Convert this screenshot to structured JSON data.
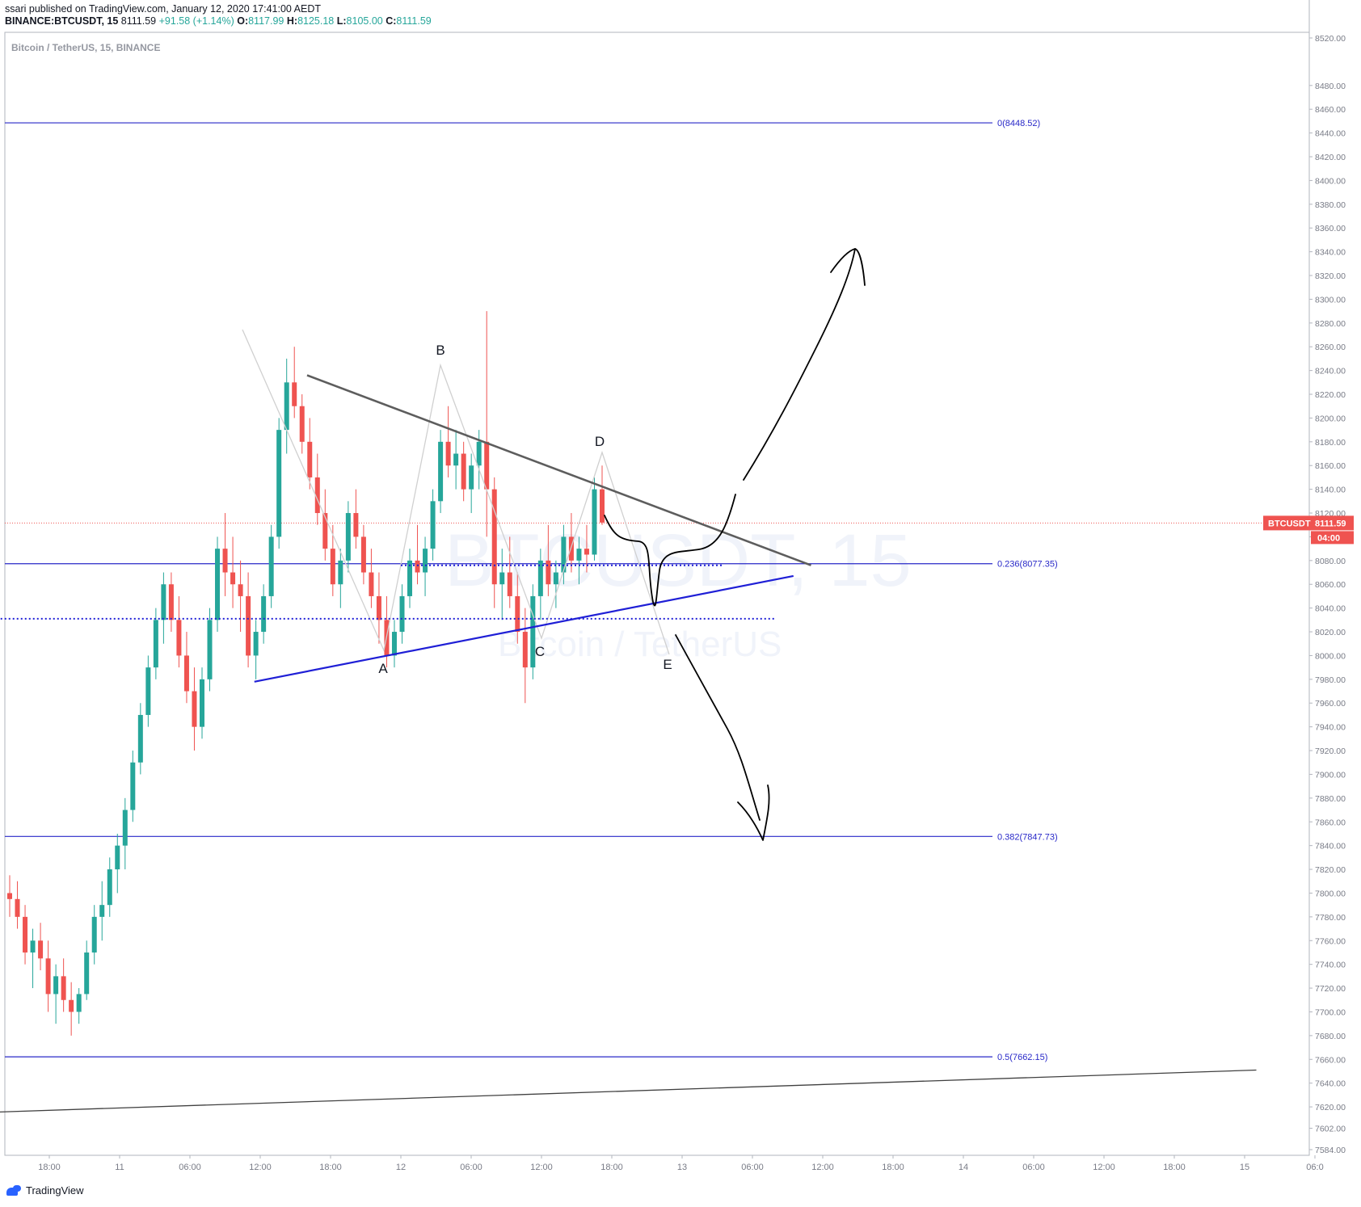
{
  "header": {
    "line1": "ssari published on TradingView.com, January 12, 2020 17:41:00 AEDT",
    "symbol": "BINANCE:BTCUSDT, 15",
    "last": "8111.59",
    "change": "+91.58 (+1.14%)",
    "o_label": "O:",
    "o_value": "8117.99",
    "h_label": "H:",
    "h_value": "8125.18",
    "l_label": "L:",
    "l_value": "8105.00",
    "c_label": "C:",
    "c_value": "8111.59"
  },
  "pane_title": "Bitcoin / TetherUS, 15, BINANCE",
  "watermark": {
    "symbol": "BTCUSDT, 15",
    "name": "Bitcoin / TetherUS"
  },
  "price_tag": {
    "symbol": "BTCUSDT",
    "price": "8111.59",
    "countdown": "04:00",
    "color": "#ef5350"
  },
  "footer": {
    "brand": "TradingView"
  },
  "colors": {
    "up": "#26a69a",
    "down": "#ef5350",
    "fib": "#2828c8",
    "trend_grey": "#5d5d5d",
    "support_blue": "#1f1fd6",
    "drawing": "#000000",
    "wave": "#d0d0d0"
  },
  "chart_data": {
    "type": "candlestick",
    "symbol": "BINANCE:BTCUSDT",
    "interval": "15",
    "y_axis": {
      "min": 7584,
      "max": 8520,
      "ticks": [
        8520,
        8480,
        8460,
        8440,
        8420,
        8400,
        8380,
        8360,
        8340,
        8320,
        8300,
        8280,
        8260,
        8240,
        8220,
        8200,
        8180,
        8160,
        8140,
        8120,
        8100,
        8080,
        8060,
        8040,
        8020,
        8000,
        7980,
        7960,
        7940,
        7920,
        7900,
        7880,
        7860,
        7840,
        7820,
        7800,
        7780,
        7760,
        7740,
        7720,
        7700,
        7680,
        7660,
        7640,
        7620,
        7602,
        7584
      ]
    },
    "x_axis": {
      "ticks": [
        "18:00",
        "11",
        "06:00",
        "12:00",
        "18:00",
        "12",
        "06:00",
        "12:00",
        "18:00",
        "13",
        "06:00",
        "12:00",
        "18:00",
        "14",
        "06:00",
        "12:00",
        "18:00",
        "15",
        "06:0"
      ]
    },
    "fib_levels": [
      {
        "label": "0(8448.52)",
        "value": 8448.52
      },
      {
        "label": "0.236(8077.35)",
        "value": 8077.35
      },
      {
        "label": "0.382(7847.73)",
        "value": 7847.73
      },
      {
        "label": "0.5(7662.15)",
        "value": 7662.15
      }
    ],
    "last_price": 8111.59,
    "wave_labels": [
      "A",
      "B",
      "C",
      "D",
      "E"
    ],
    "trend_lines": [
      {
        "name": "descending resistance",
        "from": {
          "x_hours": 22,
          "price": 8236
        },
        "to": {
          "x_hours": 65,
          "price": 8076
        }
      },
      {
        "name": "ascending support",
        "from": {
          "x_hours": 17.5,
          "price": 7978
        },
        "to": {
          "x_hours": 63.5,
          "price": 8067
        }
      },
      {
        "name": "long-term support",
        "from": {
          "x_hours": -9.5,
          "price": 7614
        },
        "to": {
          "x_hours": 103,
          "price": 7651
        }
      }
    ],
    "dotted_levels": [
      {
        "value": 8031,
        "from_x_hours": -4.5,
        "to_x_hours": 62
      },
      {
        "value": 8076,
        "from_x_hours": 30,
        "to_x_hours": 57.5
      }
    ],
    "candles_ohlc_approx": [
      [
        7800,
        7815,
        7780,
        7795
      ],
      [
        7795,
        7810,
        7770,
        7780
      ],
      [
        7780,
        7790,
        7740,
        7750
      ],
      [
        7750,
        7770,
        7720,
        7760
      ],
      [
        7760,
        7775,
        7735,
        7745
      ],
      [
        7745,
        7760,
        7700,
        7715
      ],
      [
        7715,
        7740,
        7690,
        7730
      ],
      [
        7730,
        7745,
        7700,
        7710
      ],
      [
        7710,
        7725,
        7680,
        7700
      ],
      [
        7700,
        7720,
        7690,
        7715
      ],
      [
        7715,
        7760,
        7710,
        7750
      ],
      [
        7750,
        7790,
        7740,
        7780
      ],
      [
        7780,
        7810,
        7760,
        7790
      ],
      [
        7790,
        7830,
        7780,
        7820
      ],
      [
        7820,
        7850,
        7800,
        7840
      ],
      [
        7840,
        7880,
        7820,
        7870
      ],
      [
        7870,
        7920,
        7860,
        7910
      ],
      [
        7910,
        7960,
        7900,
        7950
      ],
      [
        7950,
        8000,
        7940,
        7990
      ],
      [
        7990,
        8040,
        7980,
        8030
      ],
      [
        8030,
        8070,
        8010,
        8060
      ],
      [
        8060,
        8070,
        8020,
        8030
      ],
      [
        8030,
        8050,
        7990,
        8000
      ],
      [
        8000,
        8020,
        7960,
        7970
      ],
      [
        7970,
        7990,
        7920,
        7940
      ],
      [
        7940,
        7990,
        7930,
        7980
      ],
      [
        7980,
        8040,
        7970,
        8030
      ],
      [
        8030,
        8100,
        8020,
        8090
      ],
      [
        8090,
        8120,
        8050,
        8070
      ],
      [
        8070,
        8100,
        8040,
        8060
      ],
      [
        8060,
        8080,
        8020,
        8050
      ],
      [
        8050,
        8070,
        7990,
        8000
      ],
      [
        8000,
        8030,
        7980,
        8020
      ],
      [
        8020,
        8060,
        8010,
        8050
      ],
      [
        8050,
        8110,
        8040,
        8100
      ],
      [
        8100,
        8200,
        8090,
        8190
      ],
      [
        8190,
        8250,
        8170,
        8230
      ],
      [
        8230,
        8260,
        8200,
        8210
      ],
      [
        8210,
        8220,
        8170,
        8180
      ],
      [
        8180,
        8200,
        8140,
        8150
      ],
      [
        8150,
        8170,
        8110,
        8120
      ],
      [
        8120,
        8140,
        8080,
        8090
      ],
      [
        8090,
        8110,
        8050,
        8060
      ],
      [
        8060,
        8090,
        8040,
        8080
      ],
      [
        8080,
        8130,
        8070,
        8120
      ],
      [
        8120,
        8140,
        8090,
        8100
      ],
      [
        8100,
        8110,
        8060,
        8070
      ],
      [
        8070,
        8090,
        8040,
        8050
      ],
      [
        8050,
        8070,
        8010,
        8030
      ],
      [
        8030,
        8050,
        7990,
        8000
      ],
      [
        8000,
        8030,
        7990,
        8020
      ],
      [
        8020,
        8060,
        8010,
        8050
      ],
      [
        8050,
        8090,
        8040,
        8080
      ],
      [
        8080,
        8110,
        8060,
        8070
      ],
      [
        8070,
        8100,
        8050,
        8090
      ],
      [
        8090,
        8140,
        8080,
        8130
      ],
      [
        8130,
        8190,
        8120,
        8180
      ],
      [
        8180,
        8210,
        8150,
        8160
      ],
      [
        8160,
        8190,
        8140,
        8170
      ],
      [
        8170,
        8180,
        8130,
        8140
      ],
      [
        8140,
        8170,
        8120,
        8160
      ],
      [
        8160,
        8190,
        8140,
        8180
      ],
      [
        8180,
        8290,
        8100,
        8140
      ],
      [
        8140,
        8150,
        8040,
        8060
      ],
      [
        8060,
        8090,
        8030,
        8070
      ],
      [
        8070,
        8100,
        8040,
        8050
      ],
      [
        8050,
        8070,
        8010,
        8020
      ],
      [
        8020,
        8040,
        7960,
        7990
      ],
      [
        7990,
        8060,
        7980,
        8050
      ],
      [
        8050,
        8090,
        8030,
        8080
      ],
      [
        8080,
        8110,
        8050,
        8060
      ],
      [
        8060,
        8080,
        8040,
        8070
      ],
      [
        8070,
        8110,
        8060,
        8100
      ],
      [
        8100,
        8120,
        8070,
        8080
      ],
      [
        8080,
        8100,
        8060,
        8090
      ],
      [
        8090,
        8110,
        8070,
        8085
      ],
      [
        8085,
        8150,
        8080,
        8140
      ],
      [
        8140,
        8160,
        8110,
        8112
      ]
    ]
  }
}
